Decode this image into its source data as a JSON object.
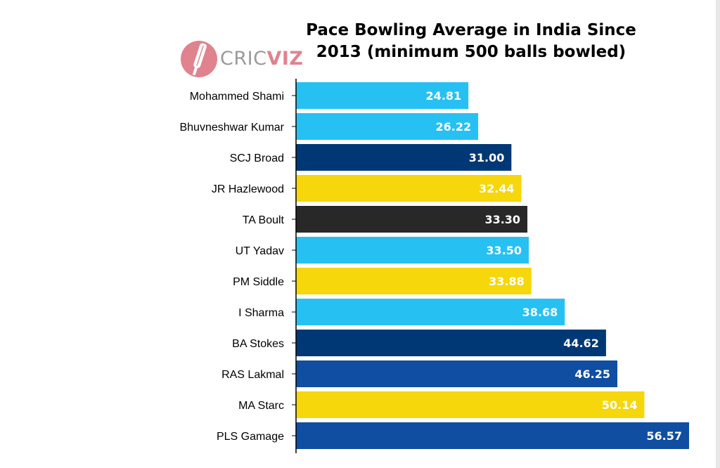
{
  "chart_data": {
    "type": "bar",
    "orientation": "horizontal",
    "title_lines": [
      "Pace Bowling Average in India Since",
      "2013 (minimum 500 balls bowled)"
    ],
    "categories": [
      "Mohammed Shami",
      "Bhuvneshwar Kumar",
      "SCJ Broad",
      "JR Hazlewood",
      "TA Boult",
      "UT Yadav",
      "PM Siddle",
      "I Sharma",
      "BA Stokes",
      "RAS Lakmal",
      "MA Starc",
      "PLS Gamage"
    ],
    "values": [
      24.81,
      26.22,
      31.0,
      32.44,
      33.3,
      33.5,
      33.88,
      38.68,
      44.62,
      46.25,
      50.14,
      56.57
    ],
    "value_labels": [
      "24.81",
      "26.22",
      "31.00",
      "32.44",
      "33.30",
      "33.50",
      "33.88",
      "38.68",
      "44.62",
      "46.25",
      "50.14",
      "56.57"
    ],
    "bar_colors": [
      "#27c0f3",
      "#27c0f3",
      "#003876",
      "#f5d70c",
      "#282828",
      "#27c0f3",
      "#f5d70c",
      "#27c0f3",
      "#003876",
      "#0f4ea0",
      "#f5d70c",
      "#0f4ea0"
    ],
    "xlim": [
      0,
      56.57
    ],
    "grid": false,
    "legend": "none"
  },
  "logo": {
    "text_part1": "CRIC",
    "text_part2": "VIZ",
    "icon": "cricket-bat-ball-icon",
    "icon_color": "#e0838f"
  }
}
